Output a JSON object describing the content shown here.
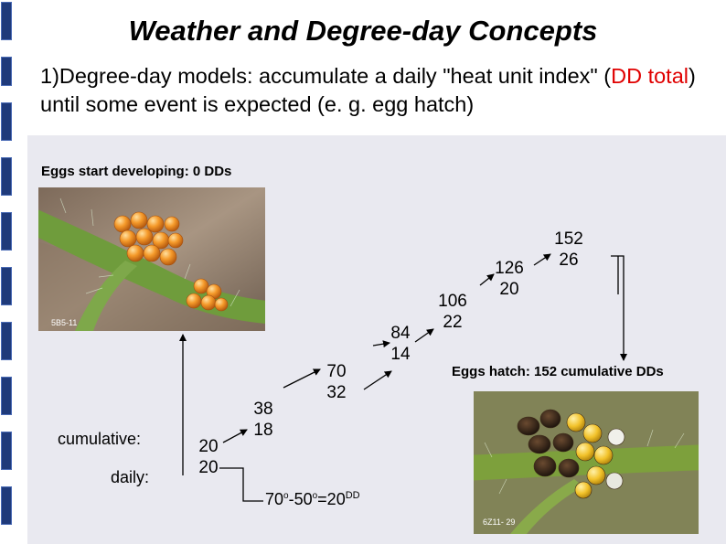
{
  "slide": {
    "title": "Weather and Degree-day Concepts",
    "point_prefix": "1)Degree-day models: accumulate a daily \"heat unit index\" (",
    "point_highlight": "DD total",
    "point_suffix": ") until some event is expected (e. g. egg hatch)",
    "highlight_color": "#e00000"
  },
  "diagram": {
    "start_label": "Eggs start developing: 0  DDs",
    "end_label": "Eggs hatch: 152 cumulative DDs",
    "row_labels": {
      "cumulative": "cumulative:",
      "daily": "daily:"
    },
    "days": [
      {
        "cumulative": "20",
        "daily": "20"
      },
      {
        "cumulative": "38",
        "daily": "18"
      },
      {
        "cumulative": "70",
        "daily": "32"
      },
      {
        "cumulative": "84",
        "daily": "14"
      },
      {
        "cumulative": "106",
        "daily": "22"
      },
      {
        "cumulative": "126",
        "daily": "20"
      },
      {
        "cumulative": "152",
        "daily": "26"
      }
    ],
    "formula": {
      "a": "70",
      "b": "-50",
      "c": "=20",
      "unit": "DD"
    }
  },
  "photos": {
    "eggs_caption": "5B5-11",
    "hatch_caption": "6Z11- 29"
  }
}
